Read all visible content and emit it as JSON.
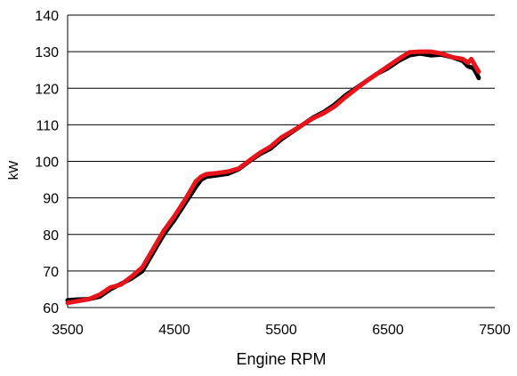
{
  "chart_data": {
    "type": "line",
    "title": "",
    "xlabel": "Engine RPM",
    "ylabel": "kW",
    "xlim": [
      3500,
      7500
    ],
    "ylim": [
      60,
      140
    ],
    "x_ticks": [
      "3500",
      "4500",
      "5500",
      "6500",
      "7500"
    ],
    "y_ticks": [
      "60",
      "70",
      "80",
      "90",
      "100",
      "110",
      "120",
      "130",
      "140"
    ],
    "grid": "horizontal",
    "legend": "none",
    "series": [
      {
        "color": "#000000",
        "points": [
          [
            3500,
            62.0
          ],
          [
            3600,
            62.2
          ],
          [
            3700,
            62.3
          ],
          [
            3800,
            63.0
          ],
          [
            3900,
            65.0
          ],
          [
            4000,
            66.5
          ],
          [
            4100,
            68.0
          ],
          [
            4200,
            70.0
          ],
          [
            4300,
            75.0
          ],
          [
            4400,
            80.0
          ],
          [
            4500,
            84.0
          ],
          [
            4600,
            88.5
          ],
          [
            4700,
            93.0
          ],
          [
            4750,
            95.0
          ],
          [
            4800,
            95.8
          ],
          [
            4900,
            96.2
          ],
          [
            5000,
            96.6
          ],
          [
            5100,
            97.8
          ],
          [
            5200,
            100.0
          ],
          [
            5300,
            102.0
          ],
          [
            5400,
            103.5
          ],
          [
            5500,
            106.0
          ],
          [
            5600,
            108.0
          ],
          [
            5700,
            110.0
          ],
          [
            5800,
            112.0
          ],
          [
            5900,
            113.5
          ],
          [
            6000,
            115.5
          ],
          [
            6100,
            118.0
          ],
          [
            6200,
            120.0
          ],
          [
            6300,
            122.0
          ],
          [
            6400,
            124.0
          ],
          [
            6500,
            125.5
          ],
          [
            6600,
            127.5
          ],
          [
            6700,
            129.0
          ],
          [
            6800,
            129.5
          ],
          [
            6900,
            129.0
          ],
          [
            7000,
            129.2
          ],
          [
            7100,
            128.5
          ],
          [
            7200,
            127.5
          ],
          [
            7250,
            126.0
          ],
          [
            7300,
            125.5
          ],
          [
            7330,
            124.0
          ],
          [
            7350,
            122.8
          ]
        ]
      },
      {
        "color": "#e8141c",
        "points": [
          [
            3500,
            61.3
          ],
          [
            3600,
            61.8
          ],
          [
            3700,
            62.3
          ],
          [
            3800,
            63.5
          ],
          [
            3900,
            65.5
          ],
          [
            4000,
            66.3
          ],
          [
            4100,
            68.5
          ],
          [
            4200,
            71.0
          ],
          [
            4300,
            76.0
          ],
          [
            4400,
            81.0
          ],
          [
            4500,
            85.0
          ],
          [
            4600,
            89.5
          ],
          [
            4700,
            94.5
          ],
          [
            4750,
            95.8
          ],
          [
            4800,
            96.5
          ],
          [
            4900,
            96.8
          ],
          [
            5000,
            97.2
          ],
          [
            5100,
            98.0
          ],
          [
            5200,
            100.2
          ],
          [
            5300,
            102.3
          ],
          [
            5400,
            104.0
          ],
          [
            5500,
            106.5
          ],
          [
            5600,
            108.2
          ],
          [
            5700,
            110.0
          ],
          [
            5800,
            111.8
          ],
          [
            5900,
            113.2
          ],
          [
            6000,
            115.0
          ],
          [
            6100,
            117.5
          ],
          [
            6200,
            119.8
          ],
          [
            6300,
            122.0
          ],
          [
            6400,
            124.0
          ],
          [
            6500,
            126.0
          ],
          [
            6600,
            128.0
          ],
          [
            6700,
            129.8
          ],
          [
            6800,
            130.0
          ],
          [
            6900,
            130.0
          ],
          [
            7000,
            129.5
          ],
          [
            7100,
            128.5
          ],
          [
            7200,
            128.0
          ],
          [
            7250,
            127.0
          ],
          [
            7280,
            128.0
          ],
          [
            7320,
            126.0
          ],
          [
            7350,
            124.5
          ]
        ]
      }
    ]
  }
}
